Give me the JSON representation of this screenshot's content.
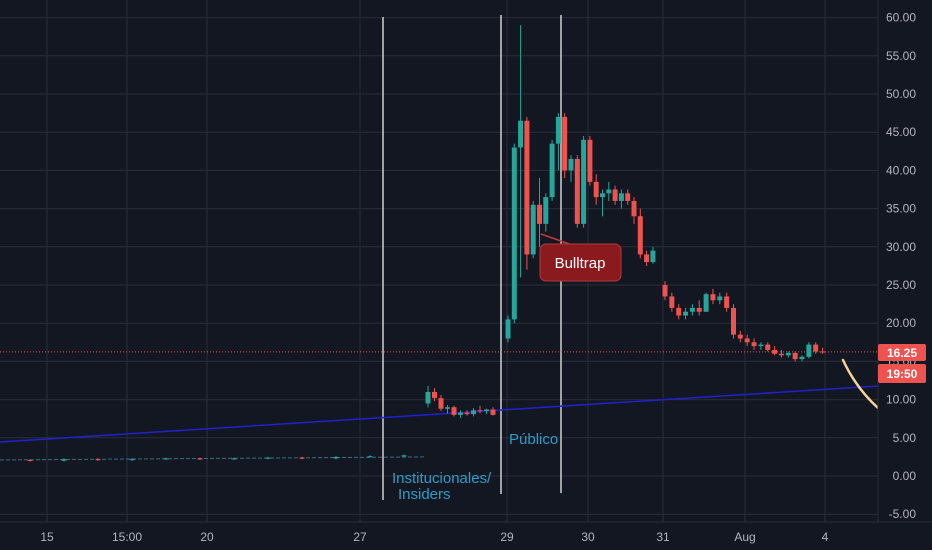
{
  "chart_data": {
    "type": "candlestick",
    "title": "",
    "xlabel": "",
    "ylabel": "",
    "ylim": [
      -5,
      62
    ],
    "y_ticks": [
      "60.00",
      "55.00",
      "50.00",
      "45.00",
      "40.00",
      "35.00",
      "30.00",
      "25.00",
      "20.00",
      "15.00",
      "10.00",
      "5.00",
      "0.00",
      "-5.00"
    ],
    "y_tick_values": [
      60,
      55,
      50,
      45,
      40,
      35,
      30,
      25,
      20,
      15,
      10,
      5,
      0,
      -5
    ],
    "x_ticks": [
      "15",
      "15:00",
      "20",
      "27",
      "29",
      "30",
      "31",
      "Aug",
      "4"
    ],
    "grid": true,
    "colors": {
      "background": "#131722",
      "grid": "#2a2e39",
      "up": "#26a69a",
      "down": "#ef5350",
      "trendline": "#2222cc",
      "vline": "#ffffff",
      "projection": "#f5d49a",
      "price_line": "#ef5350",
      "badge": "#8b1a1f"
    },
    "current_price": {
      "value": 16.25,
      "label": "16.25",
      "time_label": "19:50"
    },
    "annotations": [
      {
        "text": "Bulltrap",
        "points_to": [
          33.0,
          31.5
        ]
      },
      {
        "text": "Público"
      },
      {
        "text": "Institucionales/"
      },
      {
        "text": "Insiders"
      }
    ],
    "series": [
      {
        "values": [
          [
            2.1,
            2.2,
            1.9,
            2.0
          ],
          [
            2.0,
            2.3,
            1.9,
            2.2
          ],
          [
            2.2,
            2.3,
            2.0,
            2.1
          ],
          [
            2.1,
            2.3,
            2.0,
            2.2
          ],
          [
            2.2,
            2.4,
            2.1,
            2.3
          ],
          [
            2.3,
            2.4,
            2.1,
            2.2
          ],
          [
            2.2,
            2.4,
            2.1,
            2.3
          ],
          [
            2.3,
            2.5,
            2.2,
            2.4
          ],
          [
            2.4,
            2.5,
            2.2,
            2.3
          ],
          [
            2.3,
            2.6,
            2.2,
            2.5
          ],
          [
            2.5,
            2.7,
            2.4,
            2.6
          ],
          [
            2.6,
            2.8,
            2.5,
            2.7
          ],
          [
            9.5,
            11.8,
            9.0,
            11.0
          ],
          [
            11.0,
            11.5,
            9.8,
            10.2
          ],
          [
            10.2,
            10.6,
            8.5,
            8.8
          ],
          [
            8.8,
            9.3,
            8.2,
            9.0
          ],
          [
            9.0,
            9.2,
            7.8,
            8.0
          ],
          [
            8.0,
            8.6,
            7.6,
            8.3
          ],
          [
            8.3,
            8.6,
            7.9,
            8.1
          ],
          [
            8.1,
            8.9,
            7.8,
            8.6
          ],
          [
            8.6,
            9.2,
            8.2,
            8.5
          ],
          [
            8.5,
            8.8,
            8.1,
            8.7
          ],
          [
            8.7,
            9.0,
            7.9,
            8.0
          ],
          [
            18.0,
            21.0,
            17.5,
            20.5
          ],
          [
            20.5,
            43.5,
            20.0,
            43.0
          ],
          [
            43.0,
            59.0,
            26.0,
            46.5
          ],
          [
            46.5,
            47.0,
            27.0,
            29.0
          ],
          [
            29.0,
            36.0,
            28.5,
            35.5
          ],
          [
            35.5,
            39.0,
            30.0,
            33.0
          ],
          [
            33.0,
            37.0,
            32.0,
            36.5
          ],
          [
            36.5,
            44.0,
            36.0,
            43.5
          ],
          [
            43.5,
            47.5,
            40.0,
            47.0
          ],
          [
            47.0,
            47.5,
            39.0,
            40.0
          ],
          [
            40.0,
            42.0,
            38.5,
            41.5
          ],
          [
            41.5,
            42.0,
            32.5,
            33.0
          ],
          [
            33.0,
            44.5,
            32.5,
            44.0
          ],
          [
            44.0,
            44.5,
            38.0,
            38.5
          ],
          [
            38.5,
            39.5,
            35.5,
            36.5
          ],
          [
            36.5,
            37.5,
            34.0,
            37.0
          ],
          [
            37.0,
            38.5,
            36.0,
            37.5
          ],
          [
            37.5,
            38.0,
            35.5,
            36.0
          ],
          [
            36.0,
            37.5,
            35.0,
            37.0
          ],
          [
            37.0,
            37.5,
            35.5,
            36.0
          ],
          [
            36.0,
            36.5,
            33.0,
            34.0
          ],
          [
            34.0,
            35.0,
            28.5,
            29.0
          ],
          [
            29.0,
            29.5,
            27.5,
            28.0
          ],
          [
            28.0,
            30.0,
            27.8,
            29.5
          ],
          [
            25.0,
            25.5,
            23.0,
            23.5
          ],
          [
            23.5,
            24.0,
            21.5,
            22.0
          ],
          [
            22.0,
            22.5,
            20.5,
            21.0
          ],
          [
            21.0,
            22.0,
            20.5,
            21.5
          ],
          [
            21.5,
            22.5,
            21.0,
            22.0
          ],
          [
            22.0,
            23.0,
            21.0,
            21.5
          ],
          [
            21.5,
            24.0,
            21.5,
            23.8
          ],
          [
            23.8,
            24.5,
            22.5,
            23.0
          ],
          [
            23.0,
            24.0,
            22.5,
            23.5
          ],
          [
            23.5,
            24.0,
            21.5,
            22.0
          ],
          [
            22.0,
            22.5,
            18.0,
            18.5
          ],
          [
            18.5,
            19.0,
            17.5,
            18.0
          ],
          [
            18.0,
            18.5,
            17.0,
            17.5
          ],
          [
            17.5,
            18.0,
            16.5,
            17.0
          ],
          [
            17.0,
            17.5,
            16.5,
            17.2
          ],
          [
            17.2,
            17.5,
            16.3,
            16.5
          ],
          [
            16.5,
            17.0,
            15.8,
            16.0
          ],
          [
            16.0,
            16.5,
            15.5,
            15.8
          ],
          [
            15.8,
            16.3,
            15.5,
            16.1
          ],
          [
            16.1,
            16.3,
            15.0,
            15.3
          ],
          [
            15.3,
            15.8,
            15.0,
            15.6
          ],
          [
            15.6,
            17.5,
            15.4,
            17.2
          ],
          [
            17.2,
            17.5,
            16.0,
            16.3
          ],
          [
            16.3,
            16.8,
            16.0,
            16.25
          ]
        ]
      }
    ]
  }
}
